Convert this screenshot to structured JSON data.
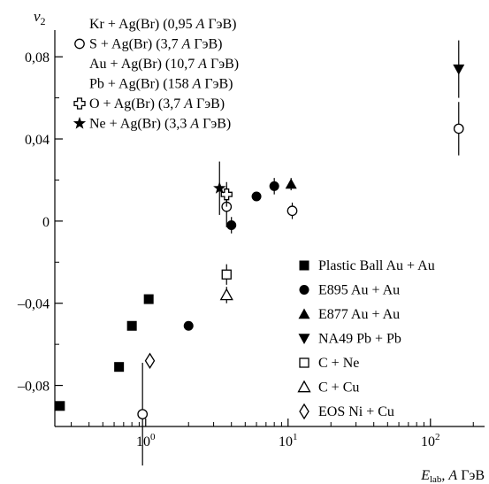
{
  "chart_data": {
    "type": "scatter",
    "ylabel": "v",
    "ylabel_sub": "2",
    "xlabel_main": "E",
    "xlabel_sub": "lab",
    "xlabel_tail": ", ",
    "xlabel_unit_italic": "A",
    "xlabel_unit": " ГэВ",
    "x_scale": "log",
    "xlim": [
      0.23,
      240
    ],
    "ylim": [
      -0.1,
      0.093
    ],
    "x_ticks": [
      {
        "value": 1,
        "base": "10",
        "exp": "0"
      },
      {
        "value": 10,
        "base": "10",
        "exp": "1"
      },
      {
        "value": 100,
        "base": "10",
        "exp": "2"
      }
    ],
    "y_ticks": [
      {
        "value": 0.08,
        "label": "0,08"
      },
      {
        "value": 0.04,
        "label": "0,04"
      },
      {
        "value": 0,
        "label": "0"
      },
      {
        "value": -0.04,
        "label": "–0,04"
      },
      {
        "value": -0.08,
        "label": "–0,08"
      }
    ],
    "grid": false,
    "legend_top": [
      {
        "marker": "none",
        "text": "Kr + Ag(Br) (0,95 ",
        "italic": "A",
        "tail": " ГэВ)"
      },
      {
        "marker": "circle-open",
        "text": "S + Ag(Br) (3,7 ",
        "italic": "A",
        "tail": " ГэВ)"
      },
      {
        "marker": "none",
        "text": "Au + Ag(Br) (10,7 ",
        "italic": "A",
        "tail": " ГэВ)"
      },
      {
        "marker": "none",
        "text": "Pb + Ag(Br) (158 ",
        "italic": "A",
        "tail": " ГэВ)"
      },
      {
        "marker": "cross-open",
        "text": "O + Ag(Br) (3,7 ",
        "italic": "A",
        "tail": " ГэВ)"
      },
      {
        "marker": "star",
        "text": "Ne + Ag(Br) (3,3 ",
        "italic": "A",
        "tail": " ГэВ)"
      }
    ],
    "legend_bottom": [
      {
        "marker": "square-filled",
        "text": "Plastic Ball Au + Au"
      },
      {
        "marker": "circle-filled",
        "text": "E895 Au + Au"
      },
      {
        "marker": "triangle-up-filled",
        "text": "E877 Au + Au"
      },
      {
        "marker": "triangle-down-filled",
        "text": "NA49 Pb + Pb"
      },
      {
        "marker": "square-open",
        "text": "C + Ne"
      },
      {
        "marker": "triangle-up-open",
        "text": "C + Cu"
      },
      {
        "marker": "diamond-open",
        "text": "EOS Ni + Cu"
      }
    ],
    "series": [
      {
        "name": "Plastic Ball Au + Au",
        "marker": "square-filled",
        "points": [
          {
            "x": 0.25,
            "y": -0.09
          },
          {
            "x": 0.65,
            "y": -0.071
          },
          {
            "x": 0.8,
            "y": -0.051
          },
          {
            "x": 1.05,
            "y": -0.038
          }
        ]
      },
      {
        "name": "E895 Au + Au",
        "marker": "circle-filled",
        "points": [
          {
            "x": 2.0,
            "y": -0.051
          },
          {
            "x": 4.0,
            "y": -0.002,
            "err": 0.004
          },
          {
            "x": 6.0,
            "y": 0.012
          },
          {
            "x": 8.0,
            "y": 0.017,
            "err": 0.004
          }
        ]
      },
      {
        "name": "E877 Au + Au",
        "marker": "triangle-up-filled",
        "points": [
          {
            "x": 10.5,
            "y": 0.018,
            "err": 0.003
          }
        ]
      },
      {
        "name": "NA49 Pb + Pb",
        "marker": "triangle-down-filled",
        "points": [
          {
            "x": 158,
            "y": 0.074,
            "err": 0.014
          }
        ]
      },
      {
        "name": "C + Ne",
        "marker": "square-open",
        "points": [
          {
            "x": 3.7,
            "y": -0.026,
            "err": 0.005
          }
        ]
      },
      {
        "name": "C + Cu",
        "marker": "triangle-up-open",
        "points": [
          {
            "x": 3.7,
            "y": -0.036,
            "err": 0.004
          }
        ]
      },
      {
        "name": "EOS Ni + Cu",
        "marker": "diamond-open",
        "points": [
          {
            "x": 1.07,
            "y": -0.068
          }
        ]
      },
      {
        "name": "Kr + Ag(Br)",
        "marker": "circle-open",
        "points": [
          {
            "x": 0.95,
            "y": -0.094,
            "err": 0.025
          }
        ]
      },
      {
        "name": "S + Ag(Br)",
        "marker": "circle-open",
        "points": [
          {
            "x": 3.7,
            "y": 0.007,
            "err": 0.01
          }
        ]
      },
      {
        "name": "Au + Ag(Br)",
        "marker": "circle-open",
        "points": [
          {
            "x": 10.7,
            "y": 0.005,
            "err": 0.004
          }
        ]
      },
      {
        "name": "Pb + Ag(Br)",
        "marker": "circle-open",
        "points": [
          {
            "x": 158,
            "y": 0.045,
            "err": 0.013
          }
        ]
      },
      {
        "name": "O + Ag(Br)",
        "marker": "cross-open",
        "points": [
          {
            "x": 3.7,
            "y": 0.013,
            "err": 0.006
          }
        ]
      },
      {
        "name": "Ne + Ag(Br)",
        "marker": "star",
        "points": [
          {
            "x": 3.3,
            "y": 0.016,
            "err": 0.013
          }
        ]
      }
    ]
  }
}
